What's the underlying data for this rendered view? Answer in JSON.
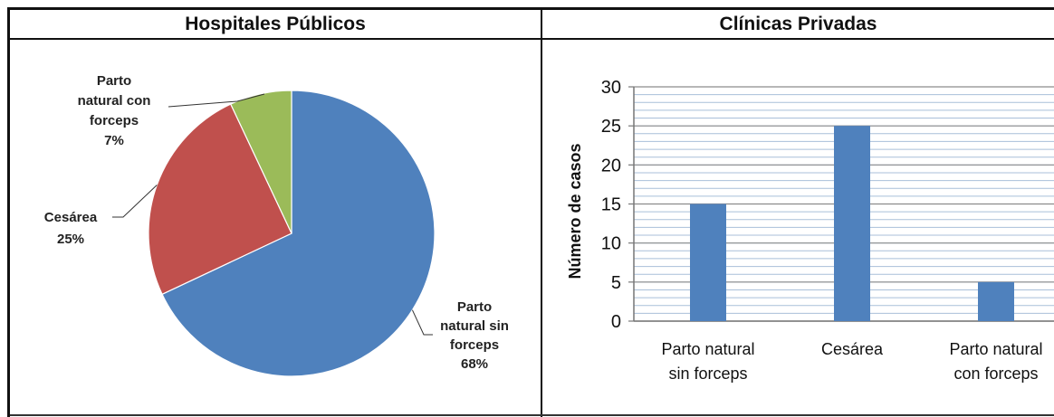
{
  "panels": {
    "left_title": "Hospitales Públicos",
    "right_title": "Clínicas Privadas"
  },
  "chart_data": [
    {
      "type": "pie",
      "title": "Hospitales Públicos",
      "slices": [
        {
          "label_lines": [
            "Parto",
            "natural sin",
            "forceps"
          ],
          "value": 68,
          "value_text": "68%",
          "color": "#4F81BD"
        },
        {
          "label_lines": [
            "Cesárea"
          ],
          "value": 25,
          "value_text": "25%",
          "color": "#C0504D"
        },
        {
          "label_lines": [
            "Parto",
            "natural con",
            "forceps"
          ],
          "value": 7,
          "value_text": "7%",
          "color": "#9BBB59"
        }
      ]
    },
    {
      "type": "bar",
      "title": "Clínicas Privadas",
      "ylabel": "Número de casos",
      "ylim": [
        0,
        30
      ],
      "yticks": [
        0,
        5,
        10,
        15,
        20,
        25,
        30
      ],
      "categories": [
        {
          "lines": [
            "Parto natural",
            "sin forceps"
          ]
        },
        {
          "lines": [
            "Cesárea"
          ]
        },
        {
          "lines": [
            "Parto natural",
            "con forceps"
          ]
        }
      ],
      "values": [
        15,
        25,
        5
      ],
      "color": "#4F81BD",
      "grid": true
    }
  ]
}
